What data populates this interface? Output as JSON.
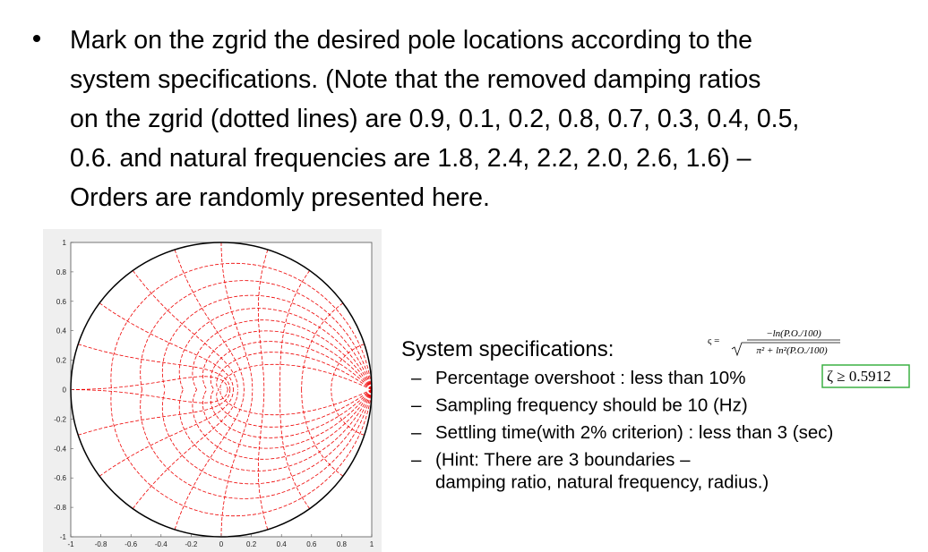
{
  "bullet": {
    "lines": [
      "Mark on the zgrid the desired pole locations according to the",
      "system specifications. (Note that the removed damping ratios",
      "on the zgrid (dotted lines) are 0.9, 0.1, 0.2, 0.8, 0.7, 0.3, 0.4, 0.5,",
      "0.6. and natural frequencies are 1.8, 2.4, 2.2, 2.0, 2.6, 1.6) –",
      "Orders are randomly presented here."
    ]
  },
  "plot": {
    "xlim": [
      -1,
      1
    ],
    "ylim": [
      -1,
      1
    ],
    "xticks": [
      -1,
      -0.8,
      -0.6,
      -0.4,
      -0.2,
      0,
      0.2,
      0.4,
      0.6,
      0.8,
      1
    ],
    "yticks": [
      -1,
      -0.8,
      -0.6,
      -0.4,
      -0.2,
      0,
      0.2,
      0.4,
      0.6,
      0.8,
      1
    ]
  },
  "specs": {
    "title": "System specifications:",
    "items": [
      {
        "marker": "–",
        "lines": [
          "Percentage overshoot  : less than 10%"
        ]
      },
      {
        "marker": "–",
        "lines": [
          "Sampling frequency should be 10 (Hz)"
        ]
      },
      {
        "marker": "–",
        "lines": [
          "Settling time(with 2% criterion) : less than 3 (sec)"
        ]
      },
      {
        "marker": "–",
        "lines": [
          "(Hint: There are 3 boundaries –",
          "damping ratio, natural frequency, radius.)"
        ]
      }
    ]
  },
  "formula": {
    "lhs": "ς =",
    "numerator": "−ln(P.O./100)",
    "denominator": "π² + ln²(P.O./100)",
    "result": "ζ ≥ 0.5912"
  }
}
